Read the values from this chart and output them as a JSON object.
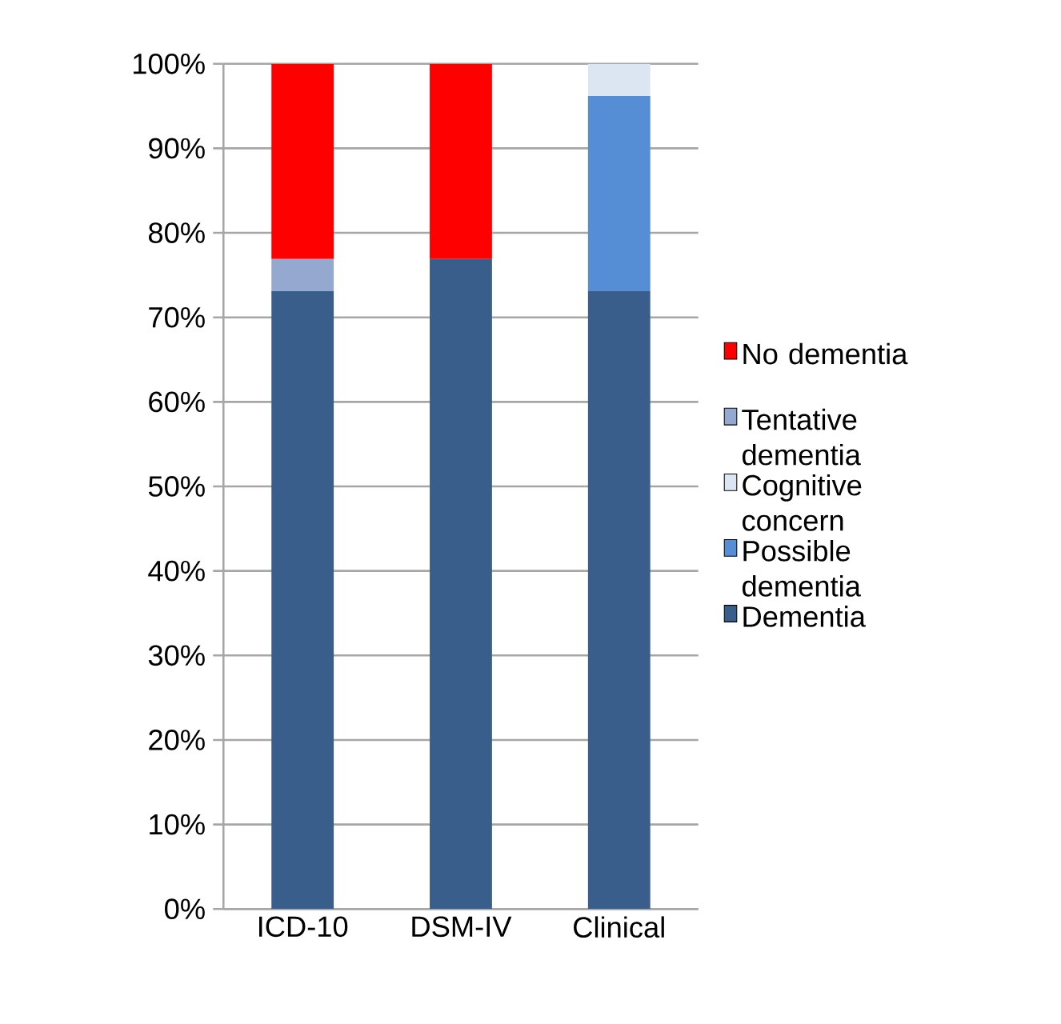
{
  "chart_data": {
    "type": "bar",
    "stacked": true,
    "categories": [
      "ICD-10",
      "DSM-IV",
      "Clinical"
    ],
    "series": [
      {
        "name": "Dementia",
        "color": "#3a5e8c",
        "values": [
          73.1,
          76.9,
          73.1
        ]
      },
      {
        "name": "Possible dementia",
        "color": "#558ed5",
        "values": [
          0,
          0,
          23.1
        ]
      },
      {
        "name": "Cognitive concern",
        "color": "#dce6f2",
        "values": [
          0,
          0,
          3.8
        ]
      },
      {
        "name": "Tentative dementia",
        "color": "#95a9d0",
        "values": [
          3.8,
          0,
          0
        ]
      },
      {
        "name": "No dementia",
        "color": "#ff0000",
        "values": [
          23.1,
          23.1,
          0
        ]
      }
    ],
    "ylim": [
      0,
      100
    ],
    "yticks": [
      {
        "value": 0,
        "label": "0%"
      },
      {
        "value": 10,
        "label": "10%"
      },
      {
        "value": 20,
        "label": "20%"
      },
      {
        "value": 30,
        "label": "30%"
      },
      {
        "value": 40,
        "label": "40%"
      },
      {
        "value": 50,
        "label": "50%"
      },
      {
        "value": 60,
        "label": "60%"
      },
      {
        "value": 70,
        "label": "70%"
      },
      {
        "value": 80,
        "label": "80%"
      },
      {
        "value": 90,
        "label": "90%"
      },
      {
        "value": 100,
        "label": "100%"
      }
    ],
    "grid": "y",
    "legend": "right"
  }
}
